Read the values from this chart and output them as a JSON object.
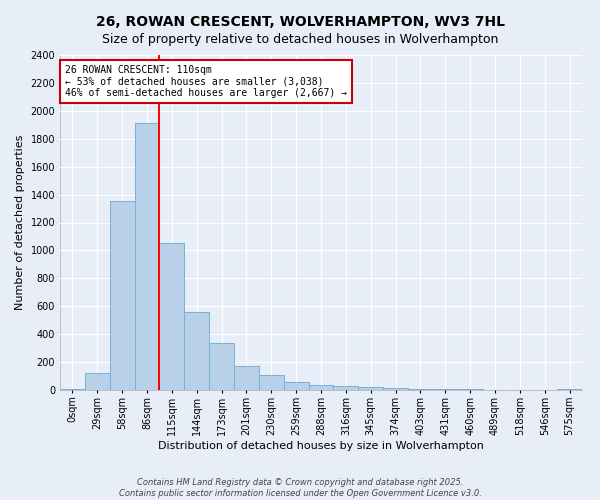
{
  "title_line1": "26, ROWAN CRESCENT, WOLVERHAMPTON, WV3 7HL",
  "title_line2": "Size of property relative to detached houses in Wolverhampton",
  "xlabel": "Distribution of detached houses by size in Wolverhampton",
  "ylabel": "Number of detached properties",
  "footer_line1": "Contains HM Land Registry data © Crown copyright and database right 2025.",
  "footer_line2": "Contains public sector information licensed under the Open Government Licence v3.0.",
  "categories": [
    "0sqm",
    "29sqm",
    "58sqm",
    "86sqm",
    "115sqm",
    "144sqm",
    "173sqm",
    "201sqm",
    "230sqm",
    "259sqm",
    "288sqm",
    "316sqm",
    "345sqm",
    "374sqm",
    "403sqm",
    "431sqm",
    "460sqm",
    "489sqm",
    "518sqm",
    "546sqm",
    "575sqm"
  ],
  "values": [
    10,
    125,
    1355,
    1910,
    1055,
    560,
    335,
    170,
    110,
    60,
    35,
    28,
    22,
    15,
    8,
    5,
    5,
    3,
    2,
    0,
    8
  ],
  "bar_color": "#b8d0e8",
  "bar_edge_color": "#6aaad4",
  "red_line_bin_index": 4,
  "annotation_text": "26 ROWAN CRESCENT: 110sqm\n← 53% of detached houses are smaller (3,038)\n46% of semi-detached houses are larger (2,667) →",
  "ylim": [
    0,
    2400
  ],
  "yticks": [
    0,
    200,
    400,
    600,
    800,
    1000,
    1200,
    1400,
    1600,
    1800,
    2000,
    2200,
    2400
  ],
  "background_color": "#e8eef8",
  "plot_bg_color": "#e8eef8",
  "grid_color": "#ffffff",
  "title_fontsize": 10,
  "subtitle_fontsize": 9,
  "axis_label_fontsize": 8,
  "tick_fontsize": 7,
  "annotation_fontsize": 7,
  "annotation_box_color": "#ffffff",
  "annotation_box_edge": "#cc0000",
  "footer_fontsize": 6
}
